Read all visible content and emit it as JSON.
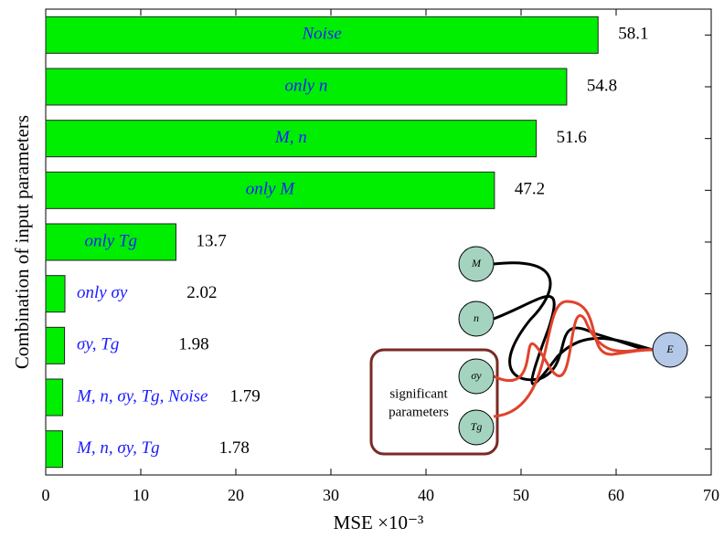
{
  "chart_data": {
    "type": "bar",
    "orientation": "horizontal",
    "xlabel": "MSE ×10⁻³",
    "ylabel": "Combination of input parameters",
    "categories": [
      "Noise",
      "only n",
      "M, n",
      "only M",
      "only Tg",
      "only σy",
      "σy, Tg",
      "M, n, σy, Tg, Noise",
      "M, n, σy, Tg"
    ],
    "values": [
      58.1,
      54.8,
      51.6,
      47.2,
      13.7,
      2.02,
      1.98,
      1.79,
      1.78
    ],
    "color": "#00ee00",
    "label_color": "#1c1cff",
    "xlim": [
      0,
      70
    ],
    "xticks": [
      0,
      10,
      20,
      30,
      40,
      50,
      60,
      70
    ]
  },
  "inset": {
    "nodes": [
      "M",
      "n",
      "σy",
      "Tg",
      "E"
    ],
    "box_label": [
      "significant",
      "parameters"
    ]
  }
}
